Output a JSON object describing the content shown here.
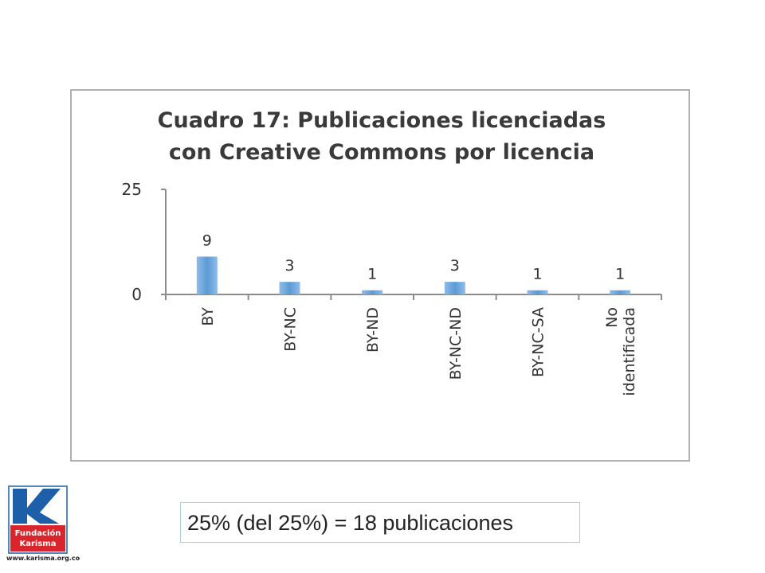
{
  "chart_data": {
    "type": "bar",
    "title_lines": [
      "Cuadro 17: Publicaciones licenciadas",
      "con Creative Commons por licencia"
    ],
    "categories": [
      "BY",
      "BY-NC",
      "BY-ND",
      "BY-NC-ND",
      "BY-NC-SA",
      "No identificada"
    ],
    "category_lines": [
      [
        "BY"
      ],
      [
        "BY-NC"
      ],
      [
        "BY-ND"
      ],
      [
        "BY-NC-ND"
      ],
      [
        "BY-NC-SA"
      ],
      [
        "No",
        "identificada"
      ]
    ],
    "values": [
      9,
      3,
      1,
      3,
      1,
      1
    ],
    "value_labels": [
      "9",
      "3",
      "1",
      "3",
      "1",
      "1"
    ],
    "ylim": [
      0,
      25
    ],
    "yticks": [
      "0",
      "25"
    ],
    "bar_color": "#5b9bd5",
    "grid": false,
    "legend": false
  },
  "caption": "25% (del 25%) = 18 publicaciones",
  "logo": {
    "brand": "Fundación Karisma",
    "line1": "Fundación",
    "line2": "Karisma",
    "url": "www.karisma.org.co",
    "colors": {
      "blue": "#1d5fa8",
      "red": "#d9262c"
    }
  }
}
